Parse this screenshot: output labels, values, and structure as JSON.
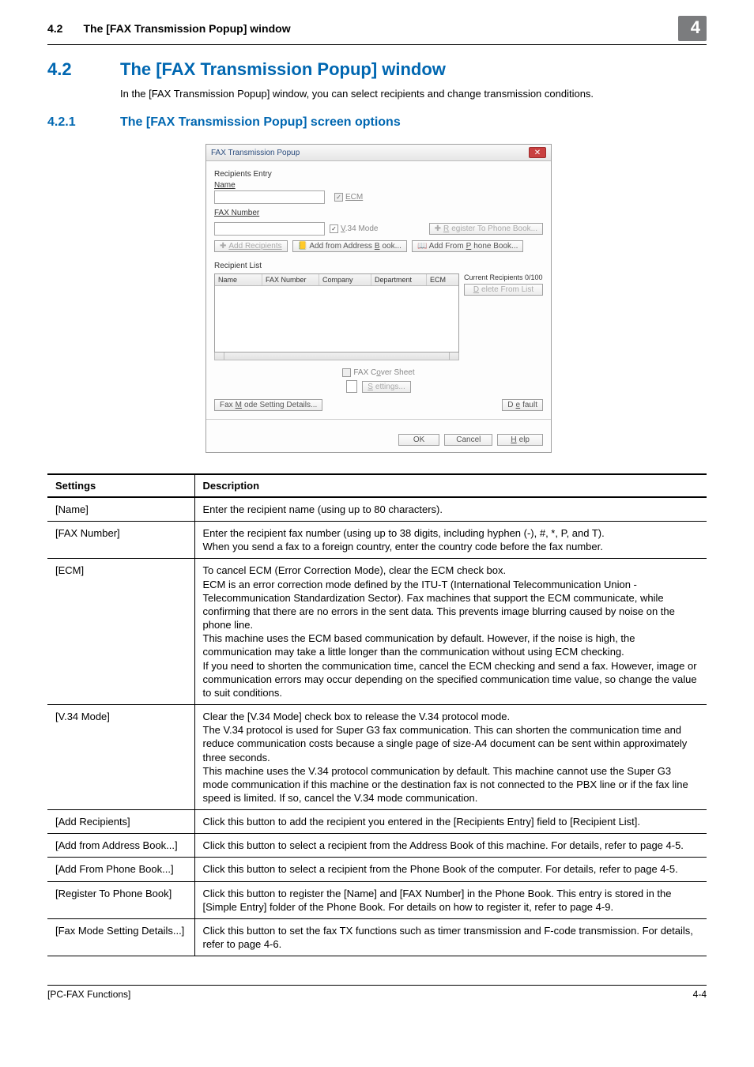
{
  "header": {
    "num": "4.2",
    "title": "The [FAX Transmission Popup] window",
    "badge": "4"
  },
  "section": {
    "num": "4.2",
    "title": "The [FAX Transmission Popup] window",
    "intro": "In the [FAX Transmission Popup] window, you can select recipients and change transmission conditions."
  },
  "subsection": {
    "num": "4.2.1",
    "title": "The [FAX Transmission Popup] screen options"
  },
  "dialog": {
    "title": "FAX Transmission Popup",
    "recipients_entry_label": "Recipients Entry",
    "name_label": "Name",
    "ecm_label": "ECM",
    "fax_number_label": "FAX Number",
    "v34_label": "V.34 Mode",
    "register_phone_btn": "Register To Phone Book...",
    "add_recipients_btn": "Add Recipients",
    "add_from_address_btn": "Add from Address Book...",
    "add_from_phone_btn": "Add From Phone Book...",
    "recipient_list_label": "Recipient List",
    "columns": {
      "name": "Name",
      "fax": "FAX Number",
      "company": "Company",
      "dept": "Department",
      "ecm": "ECM"
    },
    "current_recipients": "Current Recipients 0/100",
    "delete_from_list": "Delete From List",
    "fax_cover_sheet": "FAX Cover Sheet",
    "settings_btn": "Settings...",
    "fax_mode_btn": "Fax Mode Setting Details...",
    "default_btn": "Default",
    "ok": "OK",
    "cancel": "Cancel",
    "help": "Help"
  },
  "table": {
    "head_settings": "Settings",
    "head_desc": "Description",
    "rows": {
      "name": {
        "s": "[Name]",
        "d": "Enter the recipient name (using up to 80 characters)."
      },
      "fax": {
        "s": "[FAX Number]",
        "d": "Enter the recipient fax number (using up to 38 digits, including hyphen (-), #, *, P, and T).\nWhen you send a fax to a foreign country, enter the country code before the fax number."
      },
      "ecm": {
        "s": "[ECM]",
        "d": "To cancel ECM (Error Correction Mode), clear the ECM check box.\nECM is an error correction mode defined by the ITU-T (International Telecommunication Union - Telecommunication Standardization Sector). Fax machines that support the ECM communicate, while confirming that there are no errors in the sent data. This prevents image blurring caused by noise on the phone line.\nThis machine uses the ECM based communication by default. However, if the noise is high, the communication may take a little longer than the communication without using ECM checking.\nIf you need to shorten the communication time, cancel the ECM checking and send a fax. However, image or communication errors may occur depending on the specified communication time value, so change the value to suit conditions."
      },
      "v34": {
        "s": "[V.34 Mode]",
        "d": "Clear the [V.34 Mode] check box to release the V.34 protocol mode.\nThe V.34 protocol is used for Super G3 fax communication. This can shorten the communication time and reduce communication costs because a single page of size-A4 document can be sent within approximately three seconds.\nThis machine uses the V.34 protocol communication by default. This machine cannot use the Super G3 mode communication if this machine or the destination fax is not connected to the PBX line or if the fax line speed is limited. If so, cancel the V.34 mode communication."
      },
      "addr": {
        "s": "[Add Recipients]",
        "d": "Click this button to add the recipient you entered in the [Recipients Entry] field to [Recipient List]."
      },
      "abook": {
        "s": "[Add from Address Book...]",
        "d": "Click this button to select a recipient from the Address Book of this machine. For details, refer to page 4-5."
      },
      "pbook": {
        "s": "[Add From Phone Book...]",
        "d": "Click this button to select a recipient from the Phone Book of the computer. For details, refer to page 4-5."
      },
      "reg": {
        "s": "[Register To Phone Book]",
        "d": "Click this button to register the [Name] and [FAX Number] in the Phone Book. This entry is stored in the [Simple Entry] folder of the Phone Book. For details on how to register it, refer to page 4-9."
      },
      "fmode": {
        "s": "[Fax Mode Setting Details...]",
        "d": "Click this button to set the fax TX functions such as timer transmission and F-code transmission. For details, refer to page 4-6."
      }
    }
  },
  "footer": {
    "left": "[PC-FAX Functions]",
    "right": "4-4"
  }
}
